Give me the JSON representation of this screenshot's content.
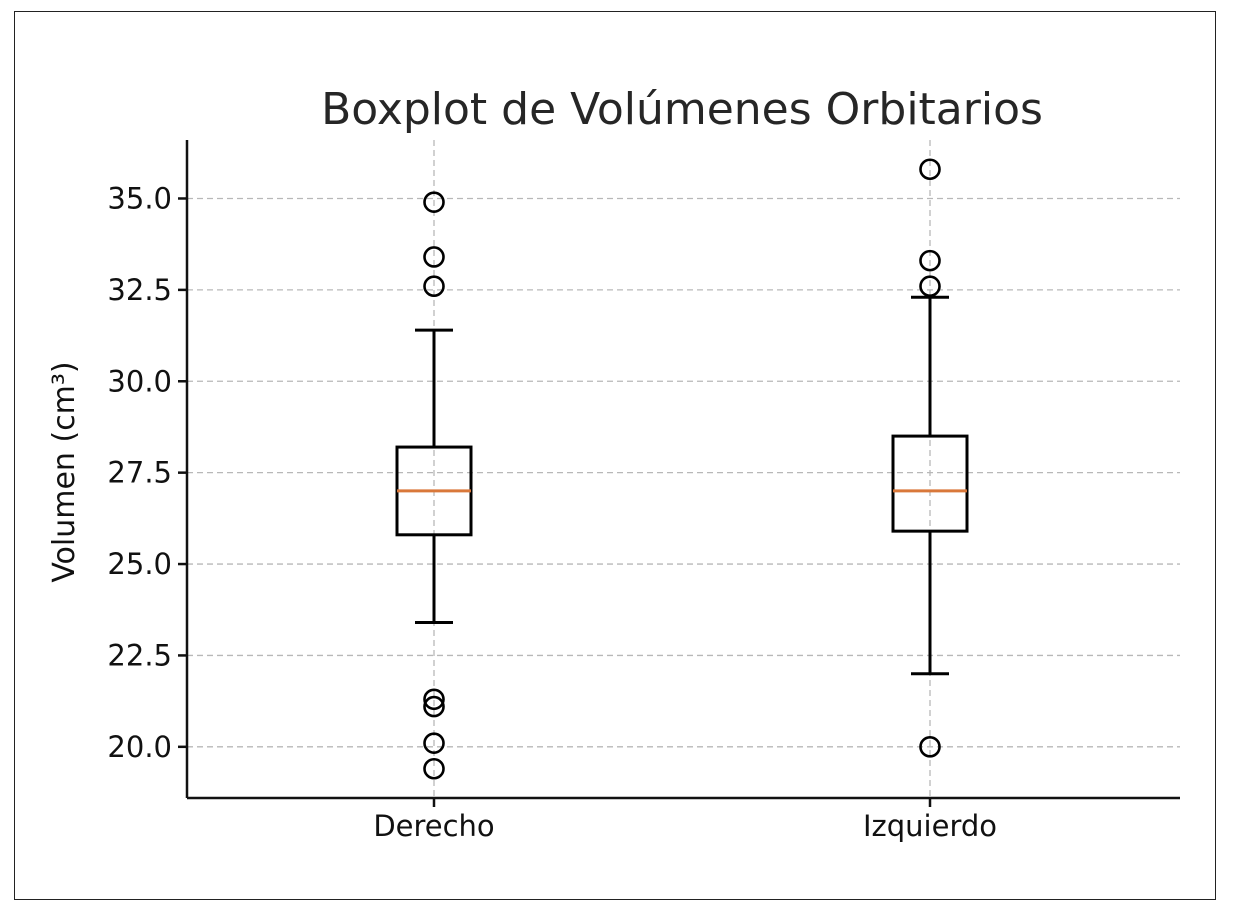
{
  "chart_data": {
    "type": "boxplot",
    "title": "Boxplot de Volúmenes Orbitarios",
    "xlabel": "",
    "ylabel": "Volumen (cm³)",
    "ylim": [
      18.6,
      36.6
    ],
    "yticks": [
      20.0,
      22.5,
      25.0,
      27.5,
      30.0,
      32.5,
      35.0
    ],
    "ytick_labels": [
      "20.0",
      "22.5",
      "25.0",
      "27.5",
      "30.0",
      "32.5",
      "35.0"
    ],
    "grid": true,
    "categories": [
      "Derecho",
      "Izquierdo"
    ],
    "boxes": [
      {
        "category": "Derecho",
        "whisker_low": 23.4,
        "q1": 25.8,
        "median": 27.0,
        "q3": 28.2,
        "whisker_high": 31.4,
        "outliers": [
          34.9,
          33.4,
          32.6,
          21.3,
          21.1,
          20.1,
          19.4
        ]
      },
      {
        "category": "Izquierdo",
        "whisker_low": 22.0,
        "q1": 25.9,
        "median": 27.0,
        "q3": 28.5,
        "whisker_high": 32.3,
        "outliers": [
          35.8,
          33.3,
          32.6,
          20.0
        ]
      }
    ],
    "colors": {
      "median": "#d9783a",
      "box": "#000000",
      "grid": "#b8b8b8"
    }
  }
}
